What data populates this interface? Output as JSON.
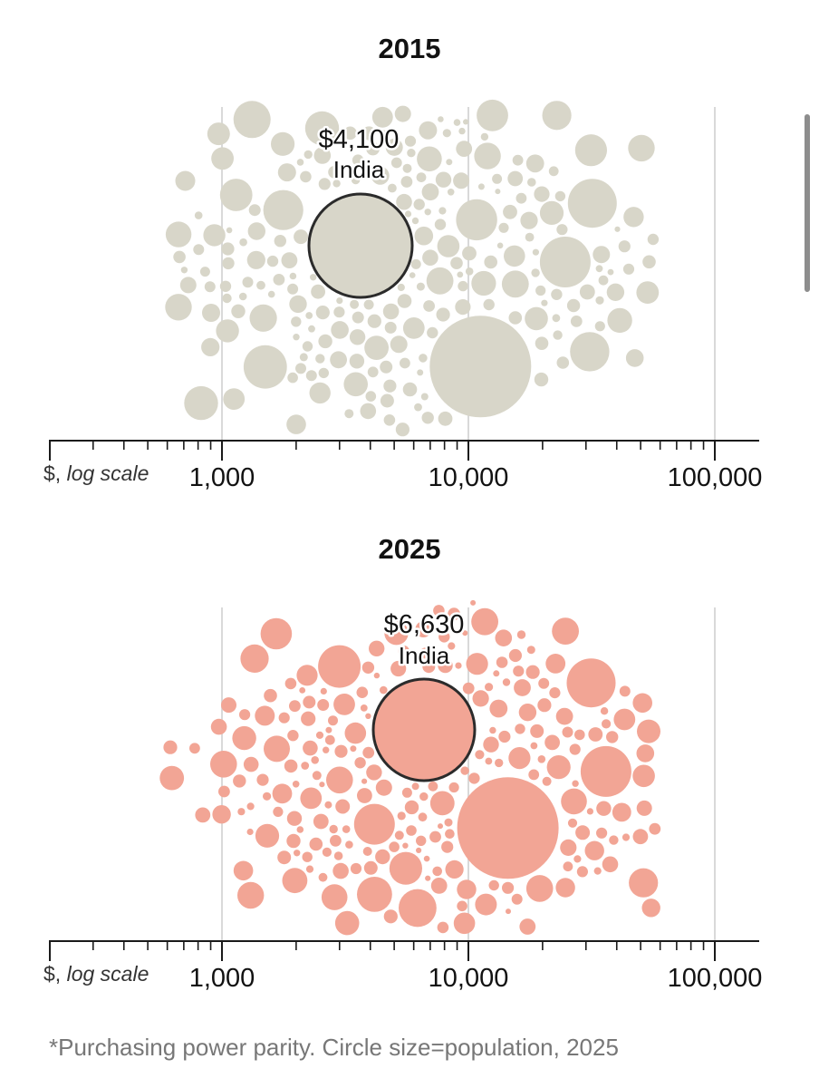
{
  "scale_label_prefix": "$, ",
  "scale_label_italic": "log scale",
  "footnote": "*Purchasing power parity. Circle size=population, 2025",
  "chart_data": [
    {
      "type": "scatter",
      "title": "2015",
      "xlabel": "$, log scale",
      "x_scale": "log",
      "xlim": [
        150,
        150000
      ],
      "ticks": [
        {
          "value": 1000,
          "label": "1,000"
        },
        {
          "value": 10000,
          "label": "10,000"
        },
        {
          "value": 100000,
          "label": "100,000"
        }
      ],
      "color": "#d8d6c9",
      "highlight": {
        "name": "India",
        "value": 4100,
        "label": "$4,100",
        "country": "India",
        "population_m": 1460
      },
      "other_countries": {
        "population_m": [
          1400,
          340,
          280,
          250,
          230,
          220,
          210,
          200,
          180,
          140,
          130,
          125,
          115,
          110,
          105,
          100,
          95,
          90,
          85,
          80,
          70,
          65,
          60,
          50,
          45,
          40,
          35,
          30,
          28,
          25,
          22,
          20,
          18,
          16,
          14,
          12,
          11,
          10,
          10,
          9,
          8,
          7,
          6,
          5,
          4
        ]
      }
    },
    {
      "type": "scatter",
      "title": "2025",
      "xlabel": "$, log scale",
      "x_scale": "log",
      "xlim": [
        150,
        150000
      ],
      "ticks": [
        {
          "value": 1000,
          "label": "1,000"
        },
        {
          "value": 10000,
          "label": "10,000"
        },
        {
          "value": 100000,
          "label": "100,000"
        }
      ],
      "color": "#f2a595",
      "highlight": {
        "name": "India",
        "value": 6630,
        "label": "$6,630",
        "country": "India",
        "population_m": 1460
      },
      "other_countries": {
        "population_m": [
          1400,
          340,
          280,
          250,
          230,
          220,
          210,
          200,
          180,
          140,
          130,
          125,
          115,
          110,
          105,
          100,
          95,
          90,
          85,
          80,
          70,
          65,
          60,
          50,
          45,
          40,
          35,
          30,
          28,
          25,
          22,
          20,
          18,
          16,
          14,
          12,
          11,
          10,
          10,
          9,
          8,
          7,
          6,
          5,
          4
        ]
      }
    }
  ]
}
